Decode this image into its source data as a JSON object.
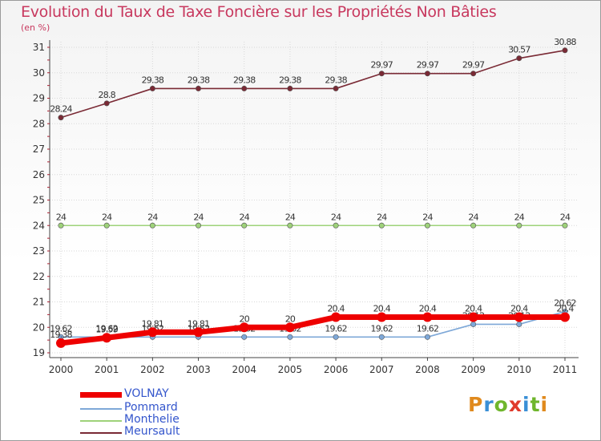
{
  "title": "Evolution du Taux de Taxe Foncière sur les Propriétés Non Bâties",
  "subtitle": "(en %)",
  "logo": {
    "text": "Proxiti",
    "colors": [
      "#e08a1e",
      "#3a8fd6",
      "#6fb62c",
      "#e03a2c",
      "#3a8fd6",
      "#6fb62c",
      "#e08a1e"
    ]
  },
  "chart_data": {
    "type": "line",
    "x": [
      "2000",
      "2001",
      "2002",
      "2003",
      "2004",
      "2005",
      "2006",
      "2007",
      "2008",
      "2009",
      "2010",
      "2011"
    ],
    "ylim": [
      19,
      31
    ],
    "yticks": [
      "19",
      "20",
      "21",
      "22",
      "23",
      "24",
      "25",
      "26",
      "27",
      "28",
      "29",
      "30",
      "31"
    ],
    "series": [
      {
        "name": "Meursault",
        "color": "#7a2a35",
        "values": [
          28.24,
          28.8,
          29.38,
          29.38,
          29.38,
          29.38,
          29.38,
          29.97,
          29.97,
          29.97,
          30.57,
          30.88
        ],
        "labels": [
          "28.24",
          "28.8",
          "29.38",
          "29.38",
          "29.38",
          "29.38",
          "29.38",
          "29.97",
          "29.97",
          "29.97",
          "30.57",
          "30.88"
        ]
      },
      {
        "name": "Monthelie",
        "color": "#9ed27a",
        "values": [
          24,
          24,
          24,
          24,
          24,
          24,
          24,
          24,
          24,
          24,
          24,
          24
        ],
        "labels": [
          "24",
          "24",
          "24",
          "24",
          "24",
          "24",
          "24",
          "24",
          "24",
          "24",
          "24",
          "24"
        ]
      },
      {
        "name": "Pommard",
        "color": "#7ea8d8",
        "values": [
          19.62,
          19.62,
          19.62,
          19.62,
          19.62,
          19.62,
          19.62,
          19.62,
          19.62,
          20.12,
          20.12,
          20.62
        ],
        "labels": [
          "19.62",
          "19.62",
          "19.62",
          "19.62",
          "19.62",
          "19.62",
          "19.62",
          "19.62",
          "19.62",
          "20.12",
          "20.12",
          "20.62"
        ]
      },
      {
        "name": "VOLNAY",
        "color": "#ee0000",
        "values": [
          19.38,
          19.59,
          19.81,
          19.81,
          20,
          20,
          20.4,
          20.4,
          20.4,
          20.4,
          20.4,
          20.4
        ],
        "labels": [
          "19.38",
          "19.59",
          "19.81",
          "19.81",
          "20",
          "20",
          "20.4",
          "20.4",
          "20.4",
          "20.4",
          "20.4",
          "20.4"
        ]
      }
    ],
    "legend": [
      "VOLNAY",
      "Pommard",
      "Monthelie",
      "Meursault"
    ]
  }
}
